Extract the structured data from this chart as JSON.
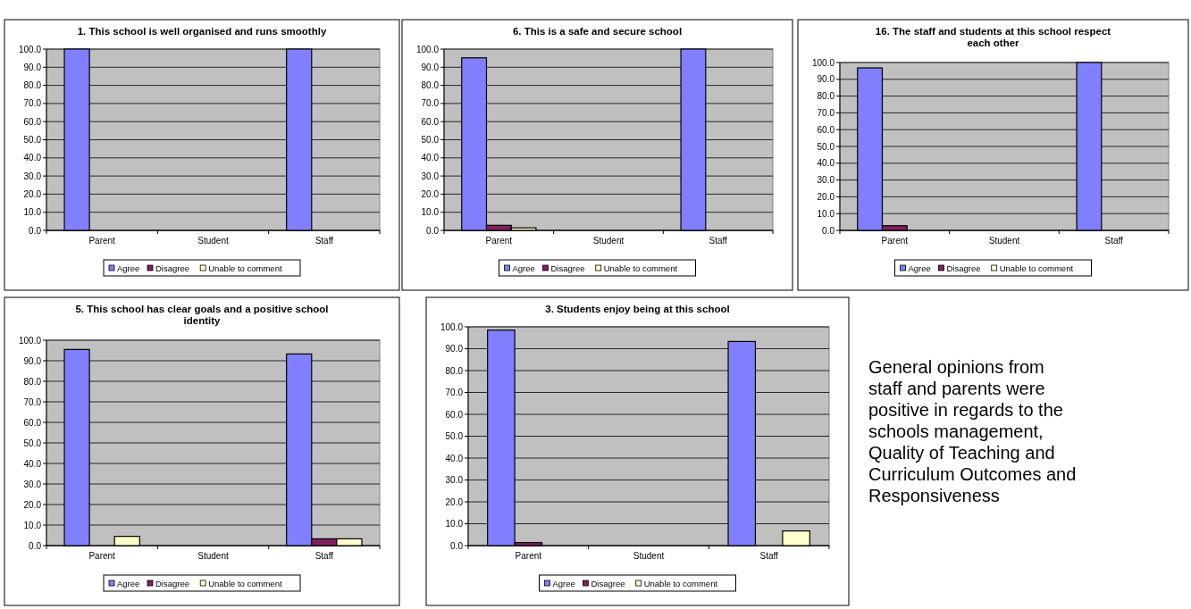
{
  "chart_data": [
    {
      "type": "bar",
      "title": "1. This school is well organised and runs smoothly",
      "categories": [
        "Parent",
        "Student",
        "Staff"
      ],
      "series": [
        {
          "name": "Agree",
          "color": "#8080ff",
          "values": [
            100,
            null,
            100
          ]
        },
        {
          "name": "Disagree",
          "color": "#802060",
          "values": [
            null,
            null,
            null
          ]
        },
        {
          "name": "Unable to comment",
          "color": "#ffffcc",
          "values": [
            null,
            null,
            null
          ]
        }
      ],
      "ylim": [
        0,
        100
      ],
      "yticks": [
        {
          "value": 0,
          "label": "0.0"
        },
        {
          "value": 10,
          "label": "10.0"
        },
        {
          "value": 20,
          "label": "20.0"
        },
        {
          "value": 30,
          "label": "30.0"
        },
        {
          "value": 40,
          "label": "40.0"
        },
        {
          "value": 50,
          "label": "50.0"
        },
        {
          "value": 60,
          "label": "60.0"
        },
        {
          "value": 70,
          "label": "70.0"
        },
        {
          "value": 80,
          "label": "80.0"
        },
        {
          "value": 90,
          "label": "90.0"
        },
        {
          "value": 100,
          "label": "100.0"
        }
      ],
      "grid": "y",
      "legend": "bottom"
    },
    {
      "type": "bar",
      "title": "6. This is a safe and secure school",
      "categories": [
        "Parent",
        "Student",
        "Staff"
      ],
      "series": [
        {
          "name": "Agree",
          "color": "#8080ff",
          "values": [
            95.2,
            null,
            100
          ]
        },
        {
          "name": "Disagree",
          "color": "#802060",
          "values": [
            2.8,
            null,
            null
          ]
        },
        {
          "name": "Unable to comment",
          "color": "#ffffcc",
          "values": [
            1.4,
            null,
            null
          ]
        }
      ],
      "ylim": [
        0,
        100
      ],
      "yticks": [
        {
          "value": 0,
          "label": "0.0"
        },
        {
          "value": 10,
          "label": "10.0"
        },
        {
          "value": 20,
          "label": "20.0"
        },
        {
          "value": 30,
          "label": "30.0"
        },
        {
          "value": 40,
          "label": "40.0"
        },
        {
          "value": 50,
          "label": "50.0"
        },
        {
          "value": 60,
          "label": "60.0"
        },
        {
          "value": 70,
          "label": "70.0"
        },
        {
          "value": 80,
          "label": "80.0"
        },
        {
          "value": 90,
          "label": "90.0"
        },
        {
          "value": 100,
          "label": "100.0"
        }
      ],
      "grid": "y",
      "legend": "bottom"
    },
    {
      "type": "bar",
      "title": "16. The staff and students at this school respect each other",
      "categories": [
        "Parent",
        "Student",
        "Staff"
      ],
      "series": [
        {
          "name": "Agree",
          "color": "#8080ff",
          "values": [
            96.8,
            null,
            100
          ]
        },
        {
          "name": "Disagree",
          "color": "#802060",
          "values": [
            2.8,
            null,
            null
          ]
        },
        {
          "name": "Unable to comment",
          "color": "#ffffcc",
          "values": [
            null,
            null,
            null
          ]
        }
      ],
      "ylim": [
        0,
        100
      ],
      "yticks": [
        {
          "value": 0,
          "label": "0.0"
        },
        {
          "value": 10,
          "label": "10.0"
        },
        {
          "value": 20,
          "label": "20.0"
        },
        {
          "value": 30,
          "label": "30.0"
        },
        {
          "value": 40,
          "label": "40.0"
        },
        {
          "value": 50,
          "label": "50.0"
        },
        {
          "value": 60,
          "label": "60.0"
        },
        {
          "value": 70,
          "label": "70.0"
        },
        {
          "value": 80,
          "label": "80.0"
        },
        {
          "value": 90,
          "label": "90.0"
        },
        {
          "value": 100,
          "label": "100.0"
        }
      ],
      "grid": "y",
      "legend": "bottom"
    },
    {
      "type": "bar",
      "title": "5. This school has clear goals and a positive school identity",
      "categories": [
        "Parent",
        "Student",
        "Staff"
      ],
      "series": [
        {
          "name": "Agree",
          "color": "#8080ff",
          "values": [
            95.5,
            null,
            93.3
          ]
        },
        {
          "name": "Disagree",
          "color": "#802060",
          "values": [
            null,
            null,
            3.3
          ]
        },
        {
          "name": "Unable to comment",
          "color": "#ffffcc",
          "values": [
            4.5,
            null,
            3.3
          ]
        }
      ],
      "ylim": [
        0,
        100
      ],
      "yticks": [
        {
          "value": 0,
          "label": "0.0"
        },
        {
          "value": 10,
          "label": "10.0"
        },
        {
          "value": 20,
          "label": "20.0"
        },
        {
          "value": 30,
          "label": "30.0"
        },
        {
          "value": 40,
          "label": "40.0"
        },
        {
          "value": 50,
          "label": "50.0"
        },
        {
          "value": 60,
          "label": "60.0"
        },
        {
          "value": 70,
          "label": "70.0"
        },
        {
          "value": 80,
          "label": "80.0"
        },
        {
          "value": 90,
          "label": "90.0"
        },
        {
          "value": 100,
          "label": "100.0"
        }
      ],
      "grid": "y",
      "legend": "bottom"
    },
    {
      "type": "bar",
      "title": "3. Students enjoy being at this school",
      "categories": [
        "Parent",
        "Student",
        "Staff"
      ],
      "series": [
        {
          "name": "Agree",
          "color": "#8080ff",
          "values": [
            98.5,
            null,
            93.3
          ]
        },
        {
          "name": "Disagree",
          "color": "#802060",
          "values": [
            1.4,
            null,
            null
          ]
        },
        {
          "name": "Unable to comment",
          "color": "#ffffcc",
          "values": [
            null,
            null,
            6.7
          ]
        }
      ],
      "ylim": [
        0,
        100
      ],
      "yticks": [
        {
          "value": 0,
          "label": "0.0"
        },
        {
          "value": 10,
          "label": "10.0"
        },
        {
          "value": 20,
          "label": "20.0"
        },
        {
          "value": 30,
          "label": "30.0"
        },
        {
          "value": 40,
          "label": "40.0"
        },
        {
          "value": 50,
          "label": "50.0"
        },
        {
          "value": 60,
          "label": "60.0"
        },
        {
          "value": 70,
          "label": "70.0"
        },
        {
          "value": 80,
          "label": "80.0"
        },
        {
          "value": 90,
          "label": "90.0"
        },
        {
          "value": 100,
          "label": "100.0"
        }
      ],
      "grid": "y",
      "legend": "bottom"
    },
    {
      "type": "other",
      "annotations": [
        "General opinions from staff and parents were positive in regards to the schools management, Quality of Teaching and Curriculum Outcomes and Responsiveness"
      ]
    }
  ]
}
